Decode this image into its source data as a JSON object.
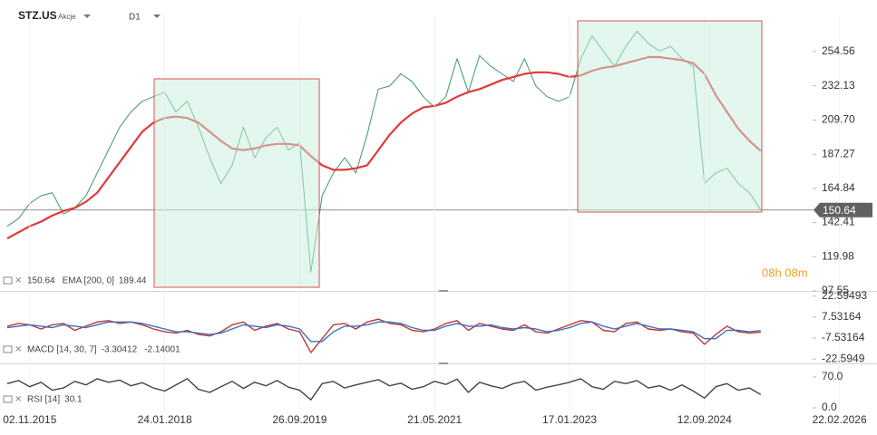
{
  "header": {
    "symbol": "STZ.US",
    "asset_class": "Akcje",
    "interval": "D1"
  },
  "chart_data": [
    {
      "type": "line",
      "categories": [
        null,
        null,
        "02.11.2015",
        null,
        null,
        null,
        null,
        null,
        null,
        null,
        null,
        null,
        null,
        null,
        "24.01.2018",
        null,
        null,
        null,
        null,
        null,
        null,
        null,
        null,
        null,
        null,
        null,
        "26.09.2019",
        null,
        null,
        null,
        null,
        null,
        null,
        null,
        null,
        null,
        null,
        null,
        "21.05.2021",
        null,
        null,
        null,
        null,
        null,
        null,
        null,
        null,
        null,
        null,
        null,
        "17.01.2023",
        null,
        null,
        null,
        null,
        null,
        null,
        null,
        null,
        null,
        null,
        null,
        "12.09.2024",
        null,
        null,
        null,
        null,
        null,
        null,
        null,
        null,
        null,
        null,
        null,
        "22.02.2026"
      ],
      "series": [
        {
          "color": "#3c9a68",
          "values": [
            140,
            145,
            155,
            160,
            162,
            148,
            152,
            160,
            175,
            190,
            205,
            215,
            222,
            225,
            228,
            215,
            222,
            205,
            185,
            168,
            180,
            205,
            185,
            198,
            205,
            190,
            195,
            110,
            160,
            175,
            185,
            175,
            200,
            230,
            232,
            240,
            235,
            225,
            218,
            225,
            250,
            228,
            252,
            245,
            240,
            235,
            250,
            232,
            225,
            222,
            225,
            250,
            265,
            255,
            245,
            258,
            268,
            260,
            255,
            258,
            250,
            245,
            168,
            175,
            178,
            168,
            162,
            150.64,
            null,
            null,
            null,
            null,
            null,
            null,
            null
          ]
        },
        {
          "name": "EMA [200, 0]",
          "color": "#e03a3a",
          "values": [
            132,
            136,
            140,
            143,
            147,
            150,
            152,
            156,
            162,
            172,
            182,
            192,
            202,
            208,
            211,
            212,
            211,
            208,
            202,
            196,
            191,
            190,
            191,
            193,
            194,
            194,
            193,
            186,
            180,
            177,
            177,
            178,
            180,
            190,
            200,
            208,
            214,
            218,
            219,
            221,
            225,
            228,
            230,
            233,
            236,
            238,
            240,
            241,
            241,
            240,
            238,
            239,
            242,
            244,
            245,
            247,
            249,
            251,
            251,
            250,
            249,
            247,
            240,
            226,
            215,
            204,
            196,
            189.44,
            null,
            null,
            null,
            null,
            null,
            null,
            null
          ]
        }
      ],
      "current_price": 150.64,
      "countdown": "08h 08m",
      "ylim": [
        97.55,
        277.76
      ],
      "yticks": [
        254.56,
        232.13,
        {
          "value": 209.7,
          "label": "209.70"
        },
        187.27,
        164.84,
        142.41,
        119.98,
        97.55
      ],
      "grid": false
    },
    {
      "type": "line",
      "series": [
        {
          "name": "MACD [14, 30, 7]",
          "color": "#c0392b",
          "values": [
            1,
            3,
            2,
            -1,
            2,
            3,
            -2,
            1,
            4,
            5,
            3,
            4,
            2,
            -1,
            -3,
            -4,
            -2,
            -5,
            -6,
            -3,
            2,
            4,
            -2,
            1,
            3,
            -1,
            -3,
            -18,
            -8,
            2,
            3,
            -1,
            4,
            6,
            3,
            2,
            -2,
            -3,
            -1,
            3,
            5,
            -2,
            3,
            1,
            -1,
            -2,
            2,
            -3,
            -4,
            -1,
            2,
            5,
            4,
            -2,
            -3,
            3,
            4,
            -1,
            -2,
            -1,
            -3,
            -4,
            -12,
            -5,
            1,
            -3,
            -4,
            -3.30412,
            null,
            null,
            null,
            null,
            null,
            null,
            null
          ]
        },
        {
          "color": "#3a6fc4",
          "values": [
            0,
            1,
            2,
            1,
            0,
            2,
            1,
            0,
            2,
            4,
            4,
            4,
            3,
            1,
            -1,
            -3,
            -3,
            -4,
            -5,
            -4,
            -1,
            2,
            1,
            0,
            2,
            1,
            -1,
            -10,
            -10,
            -3,
            1,
            1,
            2,
            4,
            4,
            3,
            0,
            -2,
            -2,
            1,
            3,
            1,
            1,
            2,
            0,
            -1,
            0,
            -1,
            -3,
            -2,
            0,
            3,
            4,
            1,
            -1,
            1,
            3,
            1,
            -1,
            -1,
            -2,
            -3,
            -8,
            -8,
            -2,
            -2,
            -3,
            -2.14001,
            null,
            null,
            null,
            null,
            null,
            null,
            null
          ]
        }
      ],
      "ylim": [
        -25.1,
        25.7
      ],
      "yticks": [
        22.59493,
        7.53164,
        -7.53164,
        -22.5949
      ],
      "grid": false
    },
    {
      "type": "line",
      "series": [
        {
          "name": "RSI [14]",
          "color": "#444444",
          "values": [
            55,
            62,
            48,
            58,
            40,
            45,
            60,
            52,
            66,
            58,
            63,
            50,
            57,
            45,
            38,
            52,
            66,
            42,
            35,
            48,
            60,
            44,
            58,
            50,
            62,
            47,
            40,
            18,
            55,
            60,
            45,
            52,
            58,
            64,
            50,
            56,
            42,
            48,
            60,
            53,
            65,
            35,
            58,
            50,
            44,
            55,
            60,
            40,
            47,
            52,
            58,
            66,
            48,
            42,
            60,
            55,
            62,
            45,
            50,
            40,
            52,
            38,
            22,
            48,
            55,
            40,
            45,
            30.1,
            null,
            null,
            null,
            null,
            null,
            null,
            null
          ]
        }
      ],
      "ylim": [
        -10.3,
        92.6
      ],
      "yticks": [
        {
          "value": 70,
          "label": "70.0"
        },
        {
          "value": 0,
          "label": "0.0"
        }
      ],
      "grid": false
    }
  ]
}
